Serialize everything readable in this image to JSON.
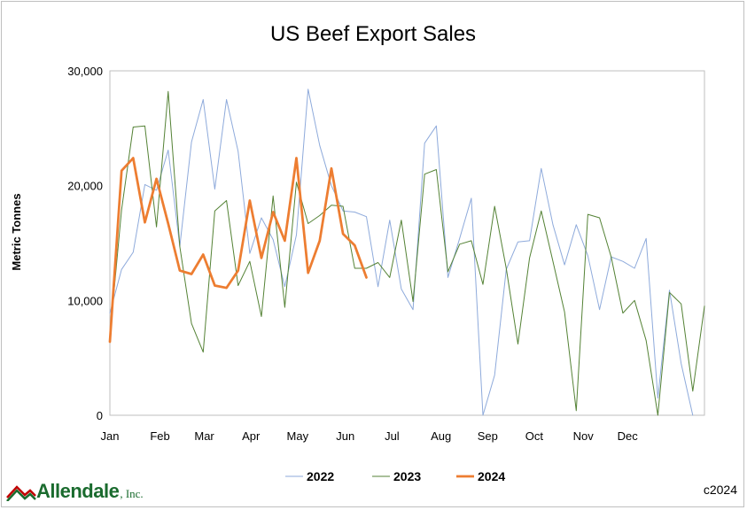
{
  "chart_data": {
    "type": "line",
    "title": "US Beef Export Sales",
    "ylabel": "Metric Tonnes",
    "xlabel": "",
    "ylim": [
      0,
      30000
    ],
    "yticks": [
      0,
      10000,
      20000,
      30000
    ],
    "ytick_labels": [
      "0",
      "10,000",
      "20,000",
      "30,000"
    ],
    "x_unit": "week of year",
    "xlim": [
      1,
      52
    ],
    "month_labels": [
      "Jan",
      "Feb",
      "Mar",
      "Apr",
      "May",
      "Jun",
      "Jul",
      "Aug",
      "Sep",
      "Oct",
      "Nov",
      "Dec"
    ],
    "month_positions": [
      1,
      5.3,
      9.1,
      13.1,
      17.1,
      21.2,
      25.2,
      29.4,
      33.4,
      37.4,
      41.6,
      45.4
    ],
    "grid": false,
    "legend_position": "bottom",
    "series": [
      {
        "name": "2022",
        "color": "#8eaadb",
        "width": 1,
        "x": [
          1,
          2,
          3,
          4,
          5,
          6,
          7,
          8,
          9,
          10,
          11,
          12,
          13,
          14,
          15,
          16,
          17,
          18,
          19,
          20,
          21,
          22,
          23,
          24,
          25,
          26,
          27,
          28,
          29,
          30,
          31,
          32,
          33,
          34,
          35,
          36,
          37,
          38,
          39,
          40,
          41,
          42,
          43,
          44,
          45,
          46,
          47,
          48,
          49,
          50,
          51,
          52
        ],
        "values": [
          8900,
          12700,
          14200,
          20100,
          19600,
          23100,
          14700,
          23800,
          27500,
          19700,
          27500,
          23000,
          14100,
          17200,
          15300,
          11200,
          15700,
          28400,
          23500,
          20000,
          17800,
          17700,
          17300,
          11200,
          17000,
          11000,
          9200,
          23700,
          25200,
          12000,
          15400,
          18900,
          0,
          3500,
          12700,
          15100,
          15200,
          21500,
          16600,
          13100,
          16600,
          13900,
          9200,
          13800,
          13400,
          12800,
          15400,
          1500,
          10900,
          4500,
          0,
          null
        ]
      },
      {
        "name": "2023",
        "color": "#548235",
        "width": 1,
        "x": [
          1,
          2,
          3,
          4,
          5,
          6,
          7,
          8,
          9,
          10,
          11,
          12,
          13,
          14,
          15,
          16,
          17,
          18,
          19,
          20,
          21,
          22,
          23,
          24,
          25,
          26,
          27,
          28,
          29,
          30,
          31,
          32,
          33,
          34,
          35,
          36,
          37,
          38,
          39,
          40,
          41,
          42,
          43,
          44,
          45,
          46,
          47,
          48,
          49,
          50,
          51,
          52
        ],
        "values": [
          6900,
          17900,
          25100,
          25200,
          16400,
          28200,
          14700,
          8000,
          5500,
          17800,
          18700,
          11300,
          13400,
          8600,
          19100,
          9400,
          20300,
          16700,
          17400,
          18300,
          18200,
          12800,
          12800,
          13300,
          12000,
          17000,
          9900,
          21000,
          21400,
          12500,
          14900,
          15200,
          11400,
          18200,
          12800,
          6200,
          13700,
          17800,
          13400,
          9000,
          400,
          17500,
          17200,
          13800,
          8900,
          10000,
          6500,
          0,
          10700,
          9700,
          2100,
          9500
        ]
      },
      {
        "name": "2024",
        "color": "#ed7d31",
        "width": 2.75,
        "x": [
          1,
          2,
          3,
          4,
          5,
          6,
          7,
          8,
          9,
          10,
          11,
          12,
          13,
          14,
          15,
          16,
          17,
          18,
          19,
          20,
          21,
          22,
          23,
          24
        ],
        "values": [
          6400,
          21300,
          22400,
          16800,
          20600,
          16700,
          12600,
          12300,
          14000,
          11300,
          11100,
          12600,
          18700,
          13700,
          17700,
          15200,
          22400,
          12400,
          15200,
          21500,
          15800,
          14800,
          12000,
          null
        ]
      }
    ]
  },
  "footer": {
    "copyright": "c2024",
    "logo_name": "Allendale",
    "logo_suffix": ", Inc."
  }
}
